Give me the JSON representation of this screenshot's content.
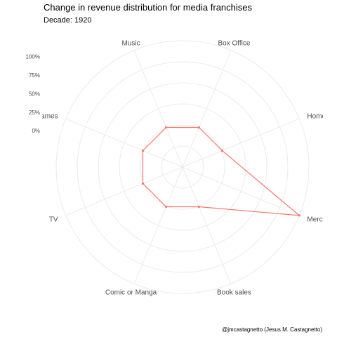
{
  "chart_data": {
    "type": "radar",
    "title": "Change in revenue distribution for media franchises",
    "subtitle": "Decade: 1920",
    "caption": "@jmcastagnetto (Jesus M. Castagnetto)",
    "categories": [
      "Box Office",
      "Home Video/Entertainment",
      "Merchandise, Licensing",
      "Book sales",
      "Comic or Manga",
      "TV",
      "Video Games/Games",
      "Music"
    ],
    "values_pct": [
      1,
      1,
      100,
      1,
      1,
      1,
      1,
      1
    ],
    "radial_ticks": [
      "0%",
      "25%",
      "50%",
      "75%",
      "100%"
    ],
    "radial_range_pct": [
      -50,
      100
    ],
    "series_color": "#f8766d",
    "grid": true
  }
}
